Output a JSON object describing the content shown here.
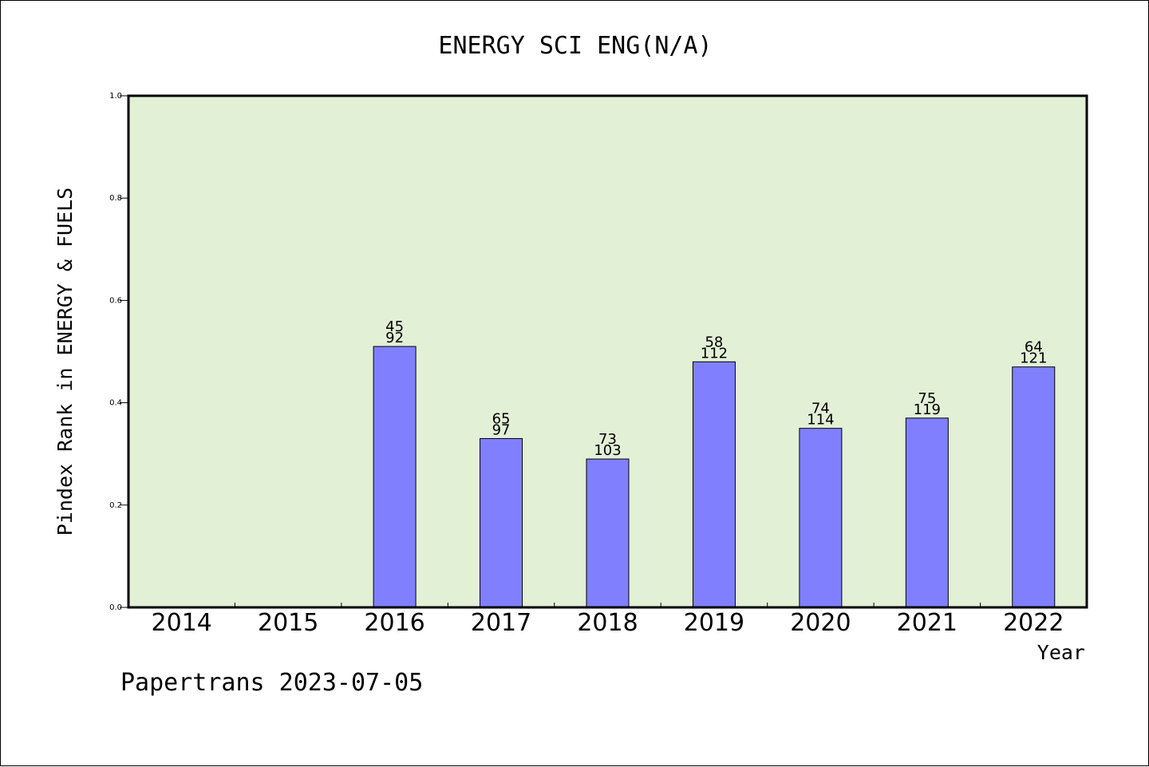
{
  "chart_data": {
    "type": "bar",
    "title": "ENERGY SCI ENG(N/A)",
    "xlabel": "Year",
    "ylabel": "Pindex Rank in ENERGY & FUELS",
    "ylim": [
      0,
      1.0
    ],
    "yticks": [
      "0.0",
      "0.2",
      "0.4",
      "0.6",
      "0.8",
      "1.0"
    ],
    "categories": [
      "2014",
      "2015",
      "2016",
      "2017",
      "2018",
      "2019",
      "2020",
      "2021",
      "2022"
    ],
    "values": [
      null,
      null,
      0.51,
      0.33,
      0.29,
      0.48,
      0.35,
      0.37,
      0.47
    ],
    "bar_labels": [
      null,
      null,
      {
        "top": "45",
        "bottom": "92"
      },
      {
        "top": "65",
        "bottom": "97"
      },
      {
        "top": "73",
        "bottom": "103"
      },
      {
        "top": "58",
        "bottom": "112"
      },
      {
        "top": "74",
        "bottom": "114"
      },
      {
        "top": "75",
        "bottom": "119"
      },
      {
        "top": "64",
        "bottom": "121"
      }
    ],
    "grid": false,
    "colors": {
      "bar": "#8080ff",
      "plot_background": "#e2f0d6"
    }
  },
  "footer": "Papertrans 2023-07-05"
}
